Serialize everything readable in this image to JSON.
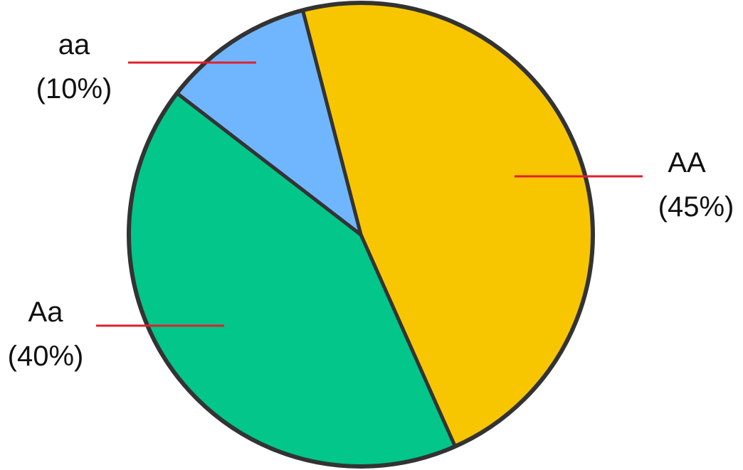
{
  "chart_data": {
    "type": "pie",
    "title": "",
    "slices": [
      {
        "name": "AA",
        "value": 45,
        "label": "(45%)",
        "color": "#f8c600"
      },
      {
        "name": "Aa",
        "value": 40,
        "label": "(40%)",
        "color": "#02c68a"
      },
      {
        "name": "aa",
        "value": 10,
        "label": "(10%)",
        "color": "#70b6ff"
      }
    ],
    "leader_line_color": "#e0202e",
    "outline_color": "#333333"
  }
}
